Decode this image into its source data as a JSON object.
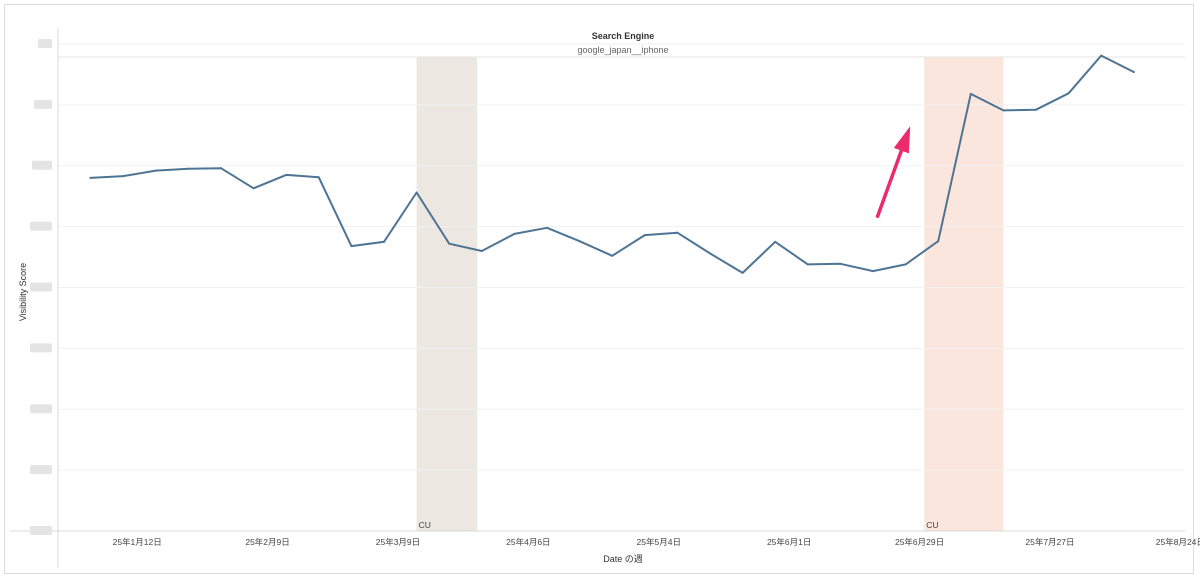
{
  "chart_data": {
    "type": "line",
    "title": "Search Engine",
    "subtitle": "google_japan__iphone",
    "xlabel": "Date の週",
    "ylabel": "Visibility Score",
    "y_tick_labels_redacted": true,
    "y_tick_count": 9,
    "ylim": [
      0,
      8
    ],
    "x_scale": "date",
    "xlim": [
      "2024-12-26",
      "2025-08-25"
    ],
    "x_tick_labels": [
      "25年1月12日",
      "25年2月9日",
      "25年3月9日",
      "25年4月6日",
      "25年5月4日",
      "25年6月1日",
      "25年6月29日",
      "25年7月27日",
      "25年8月24日"
    ],
    "x_tick_dates": [
      "2025-01-12",
      "2025-02-09",
      "2025-03-09",
      "2025-04-06",
      "2025-05-04",
      "2025-06-01",
      "2025-06-29",
      "2025-07-27",
      "2025-08-24"
    ],
    "grid": true,
    "line_color": "#4e7494",
    "series": [
      {
        "name": "",
        "x": [
          "2025-01-02",
          "2025-01-09",
          "2025-01-16",
          "2025-01-23",
          "2025-01-30",
          "2025-02-06",
          "2025-02-13",
          "2025-02-20",
          "2025-02-27",
          "2025-03-06",
          "2025-03-13",
          "2025-03-20",
          "2025-03-27",
          "2025-04-03",
          "2025-04-10",
          "2025-04-17",
          "2025-04-24",
          "2025-05-01",
          "2025-05-08",
          "2025-05-15",
          "2025-05-22",
          "2025-05-29",
          "2025-06-05",
          "2025-06-12",
          "2025-06-19",
          "2025-06-26",
          "2025-07-03",
          "2025-07-10",
          "2025-07-17",
          "2025-07-24",
          "2025-07-31",
          "2025-08-07",
          "2025-08-14"
        ],
        "values": [
          5.8,
          5.83,
          5.92,
          5.95,
          5.96,
          5.63,
          5.85,
          5.81,
          4.68,
          4.75,
          5.56,
          4.72,
          4.6,
          4.88,
          4.98,
          4.76,
          4.52,
          4.86,
          4.9,
          4.56,
          4.24,
          4.75,
          4.38,
          4.39,
          4.27,
          4.38,
          4.76,
          7.18,
          6.91,
          6.92,
          7.19,
          7.81,
          7.54
        ]
      }
    ],
    "bands": [
      {
        "label": "CU",
        "start": "2025-03-13",
        "end": "2025-03-26",
        "color": "#ede7e2"
      },
      {
        "label": "CU",
        "start": "2025-06-30",
        "end": "2025-07-17",
        "color": "#fbe6dd"
      }
    ],
    "annotation_arrow": {
      "color": "#ec2c6a",
      "from": [
        "2025-06-20",
        5.17
      ],
      "to": [
        "2025-06-27",
        6.65
      ]
    }
  }
}
